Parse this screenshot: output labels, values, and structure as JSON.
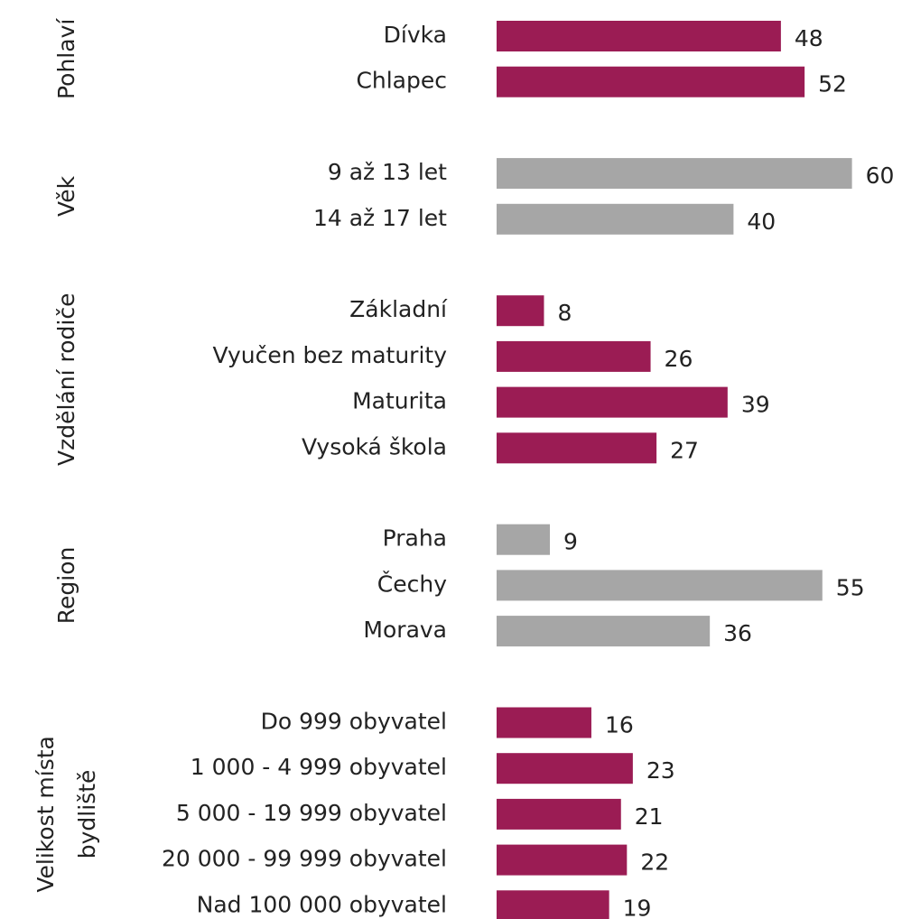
{
  "chart_data": {
    "type": "bar",
    "groups": [
      {
        "label": [
          "Pohlaví"
        ],
        "color": "#9b1c54",
        "categories": [
          "Dívka",
          "Chlapec"
        ],
        "values": [
          48,
          52
        ]
      },
      {
        "label": [
          "Věk"
        ],
        "color": "#a6a6a6",
        "categories": [
          "9 až 13 let",
          "14 až 17 let"
        ],
        "values": [
          60,
          40
        ]
      },
      {
        "label": [
          "Vzdělání rodiče"
        ],
        "color": "#9b1c54",
        "categories": [
          "Základní",
          "Vyučen bez maturity",
          "Maturita",
          "Vysoká škola"
        ],
        "values": [
          8,
          26,
          39,
          27
        ]
      },
      {
        "label": [
          "Region"
        ],
        "color": "#a6a6a6",
        "categories": [
          "Praha",
          "Čechy",
          "Morava"
        ],
        "values": [
          9,
          55,
          36
        ]
      },
      {
        "label": [
          "Velikost místa",
          "bydliště"
        ],
        "color": "#9b1c54",
        "categories": [
          "Do 999 obyvatel",
          "1 000 - 4 999 obyvatel",
          "5 000 - 19 999 obyvatel",
          "20 000 - 99 999 obyvatel",
          "Nad 100 000 obyvatel"
        ],
        "values": [
          16,
          23,
          21,
          22,
          19
        ]
      }
    ]
  }
}
